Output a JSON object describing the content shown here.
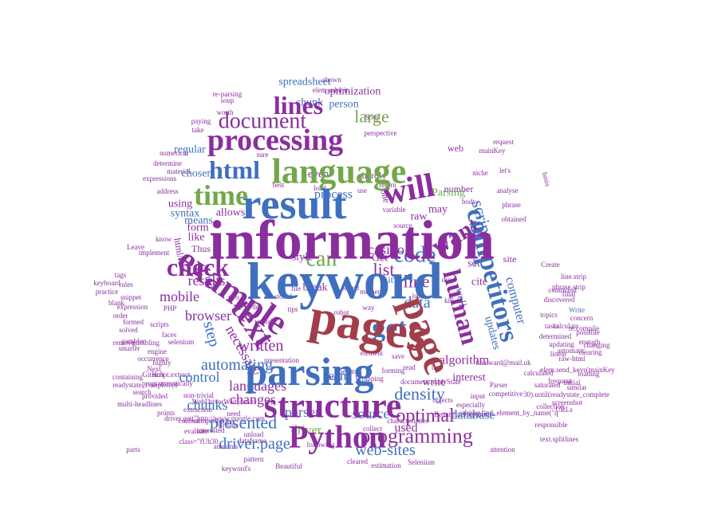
{
  "colors": {
    "purple": "#8a2e9e",
    "blue": "#3f6fbf",
    "green": "#72a84a",
    "red": "#a23e4c"
  },
  "words": [
    {
      "text": "information",
      "color": "purple"
    },
    {
      "text": "keyword",
      "color": "blue"
    },
    {
      "text": "pages",
      "color": "red"
    },
    {
      "text": "result",
      "color": "blue"
    },
    {
      "text": "language",
      "color": "green"
    },
    {
      "text": "parsing",
      "color": "blue"
    },
    {
      "text": "structure",
      "color": "purple"
    },
    {
      "text": "page",
      "color": "red"
    },
    {
      "text": "example",
      "color": "purple"
    },
    {
      "text": "text",
      "color": "purple"
    },
    {
      "text": "competitors",
      "color": "blue"
    },
    {
      "text": "processing",
      "color": "purple"
    },
    {
      "text": "will",
      "color": "purple"
    },
    {
      "text": "Python",
      "color": "purple"
    },
    {
      "text": "time",
      "color": "green"
    },
    {
      "text": "check",
      "color": "purple"
    },
    {
      "text": "document",
      "color": "purple"
    },
    {
      "text": "html",
      "color": "blue"
    },
    {
      "text": "human",
      "color": "purple"
    },
    {
      "text": "want",
      "color": "purple"
    },
    {
      "text": "lines",
      "color": "purple"
    },
    {
      "text": "can",
      "color": "green"
    },
    {
      "text": "code",
      "color": "blue"
    },
    {
      "text": "get",
      "color": "blue"
    },
    {
      "text": "line",
      "color": "purple"
    },
    {
      "text": "programming",
      "color": "purple"
    },
    {
      "text": "optimal",
      "color": "purple"
    },
    {
      "text": "presented",
      "color": "blue"
    },
    {
      "text": "driver.page",
      "color": "blue"
    },
    {
      "text": "density",
      "color": "blue"
    },
    {
      "text": "script",
      "color": "blue"
    },
    {
      "text": "step",
      "color": "blue"
    },
    {
      "text": "automating",
      "color": "blue"
    },
    {
      "text": "large",
      "color": "green"
    },
    {
      "text": "data",
      "color": "blue"
    },
    {
      "text": "list",
      "color": "purple"
    },
    {
      "text": "casino",
      "color": "purple"
    },
    {
      "text": "written",
      "color": "purple"
    },
    {
      "text": "languages",
      "color": "purple"
    },
    {
      "text": "results",
      "color": "purple"
    },
    {
      "text": "web-sites",
      "color": "blue"
    },
    {
      "text": "parser",
      "color": "blue"
    },
    {
      "text": "necessary",
      "color": "purple"
    },
    {
      "text": "changes",
      "color": "purple"
    },
    {
      "text": "mobile",
      "color": "purple"
    },
    {
      "text": "browser",
      "color": "purple"
    },
    {
      "text": "control",
      "color": "blue"
    },
    {
      "text": "team",
      "color": "blue"
    },
    {
      "text": "chunks",
      "color": "blue"
    },
    {
      "text": "source",
      "color": "blue"
    },
    {
      "text": "driver",
      "color": "green"
    },
    {
      "text": "used",
      "color": "purple"
    },
    {
      "text": "database",
      "color": "blue"
    },
    {
      "text": "algorithm",
      "color": "purple"
    },
    {
      "text": "updates",
      "color": "blue"
    },
    {
      "text": "computer",
      "color": "blue"
    },
    {
      "text": "well",
      "color": "blue"
    },
    {
      "text": "interest",
      "color": "purple"
    },
    {
      "text": "set",
      "color": "purple"
    },
    {
      "text": "cite",
      "color": "purple"
    },
    {
      "text": "write",
      "color": "purple"
    },
    {
      "text": "raw",
      "color": "purple"
    },
    {
      "text": "break",
      "color": "purple"
    },
    {
      "text": "process",
      "color": "blue"
    },
    {
      "text": "even",
      "color": "purple"
    },
    {
      "text": "person",
      "color": "blue"
    },
    {
      "text": "optimization",
      "color": "purple"
    },
    {
      "text": "spreadsheet",
      "color": "blue"
    },
    {
      "text": "chunk",
      "color": "blue"
    },
    {
      "text": "regular",
      "color": "blue"
    },
    {
      "text": "chosen",
      "color": "blue"
    },
    {
      "text": "means",
      "color": "blue"
    },
    {
      "text": "like",
      "color": "purple"
    },
    {
      "text": "using",
      "color": "purple"
    },
    {
      "text": "syntax",
      "color": "blue"
    },
    {
      "text": "form",
      "color": "purple"
    },
    {
      "text": "allows",
      "color": "purple"
    },
    {
      "text": "html/text",
      "color": "purple"
    },
    {
      "text": "Thus",
      "color": "purple"
    },
    {
      "text": "style",
      "color": "purple"
    },
    {
      "text": "Get",
      "color": "purple"
    },
    {
      "text": "may",
      "color": "purple"
    },
    {
      "text": "Parsing",
      "color": "green"
    },
    {
      "text": "number",
      "color": "purple"
    },
    {
      "text": "web",
      "color": "purple"
    },
    {
      "text": "site",
      "color": "purple"
    },
    {
      "text": "hardly",
      "color": "purple"
    },
    {
      "text": "one",
      "color": "purple"
    },
    {
      "text": "it's",
      "color": "blue"
    },
    {
      "text": "top",
      "color": "blue"
    },
    {
      "text": "shown",
      "color": "purple"
    },
    {
      "text": "elem.submit",
      "color": "purple"
    },
    {
      "text": "mainKey",
      "color": "purple"
    },
    {
      "text": "request",
      "color": "purple"
    },
    {
      "text": "niche",
      "color": "purple"
    },
    {
      "text": "let's",
      "color": "purple"
    },
    {
      "text": "body",
      "color": "purple"
    },
    {
      "text": "phrase",
      "color": "purple"
    },
    {
      "text": "obtained",
      "color": "purple"
    },
    {
      "text": "basis",
      "color": "purple"
    },
    {
      "text": "command",
      "color": "purple"
    },
    {
      "text": "Create",
      "color": "purple"
    },
    {
      "text": "line.strip",
      "color": "purple"
    },
    {
      "text": "phrase.strip",
      "color": "purple"
    },
    {
      "text": "discovered",
      "color": "purple"
    },
    {
      "text": "final",
      "color": "purple"
    },
    {
      "text": "Write",
      "color": "blue"
    },
    {
      "text": "tasks",
      "color": "purple"
    },
    {
      "text": "topics",
      "color": "purple"
    },
    {
      "text": "calculate",
      "color": "purple"
    },
    {
      "text": "determined",
      "color": "purple"
    },
    {
      "text": "possible",
      "color": "purple"
    },
    {
      "text": "re.compile",
      "color": "purple"
    },
    {
      "text": "changing",
      "color": "purple"
    },
    {
      "text": "tina.ward@mail.uk",
      "color": "purple"
    },
    {
      "text": "raw-html",
      "color": "purple"
    },
    {
      "text": "Parser",
      "color": "purple"
    },
    {
      "text": "calculated",
      "color": "purple"
    },
    {
      "text": "competitive",
      "color": "purple"
    },
    {
      "text": "elem.send_keys(mainKey",
      "color": "purple"
    },
    {
      "text": "especially",
      "color": "purple"
    },
    {
      "text": "initial",
      "color": "purple"
    },
    {
      "text": "30).until(readystate_complete",
      "color": "purple"
    },
    {
      "text": "BeautifulSoup(html",
      "color": "purple"
    },
    {
      "text": "collection",
      "color": "purple"
    },
    {
      "text": "responsible",
      "color": "purple"
    },
    {
      "text": "driver.find_element_by_name(\"q",
      "color": "purple"
    },
    {
      "text": "text.splitlines",
      "color": "purple"
    },
    {
      "text": "attention",
      "color": "purple"
    },
    {
      "text": "Selenium",
      "color": "purple"
    },
    {
      "text": "estimation",
      "color": "purple"
    },
    {
      "text": "cleared",
      "color": "purple"
    },
    {
      "text": "Beautiful",
      "color": "purple"
    },
    {
      "text": "keyword's",
      "color": "purple"
    },
    {
      "text": "pattern",
      "color": "purple"
    },
    {
      "text": "amounts",
      "color": "purple"
    },
    {
      "text": "dataframe",
      "color": "purple"
    },
    {
      "text": "competitor's",
      "color": "purple"
    },
    {
      "text": "class=\"fUh30",
      "color": "purple"
    },
    {
      "text": "driver.get(\"http://www.google.com",
      "color": "purple"
    },
    {
      "text": "WebDriverWait(driver",
      "color": "purple"
    },
    {
      "text": "extraction",
      "color": "purple"
    },
    {
      "text": "non-trivial",
      "color": "purple"
    },
    {
      "text": "provided",
      "color": "purple"
    },
    {
      "text": "readystate_complete(d",
      "color": "purple"
    },
    {
      "text": "programmatically",
      "color": "purple"
    },
    {
      "text": "GitHub",
      "color": "purple"
    },
    {
      "text": "script.extract",
      "color": "purple"
    },
    {
      "text": "containing",
      "color": "purple"
    },
    {
      "text": "Next",
      "color": "purple"
    },
    {
      "text": "highly",
      "color": "purple"
    },
    {
      "text": "engine",
      "color": "purple"
    },
    {
      "text": "gambling",
      "color": "purple"
    },
    {
      "text": "formed",
      "color": "purple"
    },
    {
      "text": "expression",
      "color": "purple"
    },
    {
      "text": "parts",
      "color": "purple"
    },
    {
      "text": "points",
      "color": "purple"
    },
    {
      "text": "evaluate",
      "color": "purple"
    },
    {
      "text": "content",
      "color": "purple"
    },
    {
      "text": "interested",
      "color": "purple"
    },
    {
      "text": "stream",
      "color": "purple"
    },
    {
      "text": "need",
      "color": "purple"
    },
    {
      "text": "unload",
      "color": "purple"
    },
    {
      "text": "following",
      "color": "purple"
    },
    {
      "text": "collect",
      "color": "purple"
    },
    {
      "text": "characteristics",
      "color": "purple"
    },
    {
      "text": "Wrapping",
      "color": "purple"
    },
    {
      "text": "huge",
      "color": "purple"
    },
    {
      "text": "search",
      "color": "purple"
    },
    {
      "text": "multi-headlines",
      "color": "purple"
    },
    {
      "text": "occurrence",
      "color": "purple"
    },
    {
      "text": "smarter",
      "color": "purple"
    },
    {
      "text": "remove",
      "color": "purple"
    },
    {
      "text": "solved",
      "color": "purple"
    },
    {
      "text": "scripts",
      "color": "purple"
    },
    {
      "text": "faces",
      "color": "purple"
    },
    {
      "text": "PHP",
      "color": "purple"
    },
    {
      "text": "snippet",
      "color": "purple"
    },
    {
      "text": "order",
      "color": "purple"
    },
    {
      "text": "blank",
      "color": "purple"
    },
    {
      "text": "practice",
      "color": "purple"
    },
    {
      "text": "keyboard",
      "color": "purple"
    },
    {
      "text": "tags",
      "color": "purple"
    },
    {
      "text": "rules",
      "color": "purple"
    },
    {
      "text": "implement",
      "color": "purple"
    },
    {
      "text": "Leave",
      "color": "purple"
    },
    {
      "text": "know",
      "color": "purple"
    },
    {
      "text": "expressions",
      "color": "purple"
    },
    {
      "text": "address",
      "color": "purple"
    },
    {
      "text": "numerical",
      "color": "purple"
    },
    {
      "text": "determine",
      "color": "purple"
    },
    {
      "text": "material",
      "color": "purple"
    },
    {
      "text": "take",
      "color": "purple"
    },
    {
      "text": "paying",
      "color": "purple"
    },
    {
      "text": "worth",
      "color": "purple"
    },
    {
      "text": "soup",
      "color": "purple"
    },
    {
      "text": "re-parsing",
      "color": "purple"
    },
    {
      "text": "presentation",
      "color": "purple"
    },
    {
      "text": "operators",
      "color": "purple"
    },
    {
      "text": "document.readyState",
      "color": "purple"
    },
    {
      "text": "objects",
      "color": "purple"
    },
    {
      "text": "input",
      "color": "purple"
    },
    {
      "text": "lies",
      "color": "purple"
    },
    {
      "text": "forming",
      "color": "purple"
    },
    {
      "text": "save",
      "color": "purple"
    },
    {
      "text": "read",
      "color": "purple"
    },
    {
      "text": "element",
      "color": "purple"
    },
    {
      "text": "case",
      "color": "purple"
    },
    {
      "text": "way",
      "color": "purple"
    },
    {
      "text": "moment",
      "color": "purple"
    },
    {
      "text": "output",
      "color": "purple"
    },
    {
      "text": "robot",
      "color": "purple"
    },
    {
      "text": "tips",
      "color": "purple"
    },
    {
      "text": "equal",
      "color": "purple"
    },
    {
      "text": "def",
      "color": "purple"
    },
    {
      "text": "two",
      "color": "purple"
    },
    {
      "text": "stored",
      "color": "purple"
    },
    {
      "text": "file",
      "color": "purple"
    },
    {
      "text": "kill",
      "color": "purple"
    },
    {
      "text": "just",
      "color": "purple"
    },
    {
      "text": "drop",
      "color": "purple"
    },
    {
      "text": "sure",
      "color": "purple"
    },
    {
      "text": "best",
      "color": "purple"
    },
    {
      "text": "load",
      "color": "purple"
    },
    {
      "text": "use",
      "color": "purple"
    },
    {
      "text": "return",
      "color": "purple"
    },
    {
      "text": "variable",
      "color": "purple"
    },
    {
      "text": "source",
      "color": "purple"
    },
    {
      "text": "Soup",
      "color": "purple"
    },
    {
      "text": "perspective",
      "color": "purple"
    },
    {
      "text": "analyse",
      "color": "purple"
    },
    {
      "text": "linear",
      "color": "purple"
    },
    {
      "text": "automatic",
      "color": "purple"
    },
    {
      "text": "updating",
      "color": "purple"
    },
    {
      "text": "clearing",
      "color": "purple"
    },
    {
      "text": "enough",
      "color": "purple"
    },
    {
      "text": "concern",
      "color": "purple"
    },
    {
      "text": "saturated",
      "color": "purple"
    },
    {
      "text": "screenshot",
      "color": "purple"
    },
    {
      "text": "URLs",
      "color": "purple"
    },
    {
      "text": "loading",
      "color": "purple"
    },
    {
      "text": "frequent",
      "color": "purple"
    },
    {
      "text": "similar",
      "color": "purple"
    },
    {
      "text": "selenium",
      "color": "purple"
    },
    {
      "text": "gambler",
      "color": "purple"
    }
  ]
}
